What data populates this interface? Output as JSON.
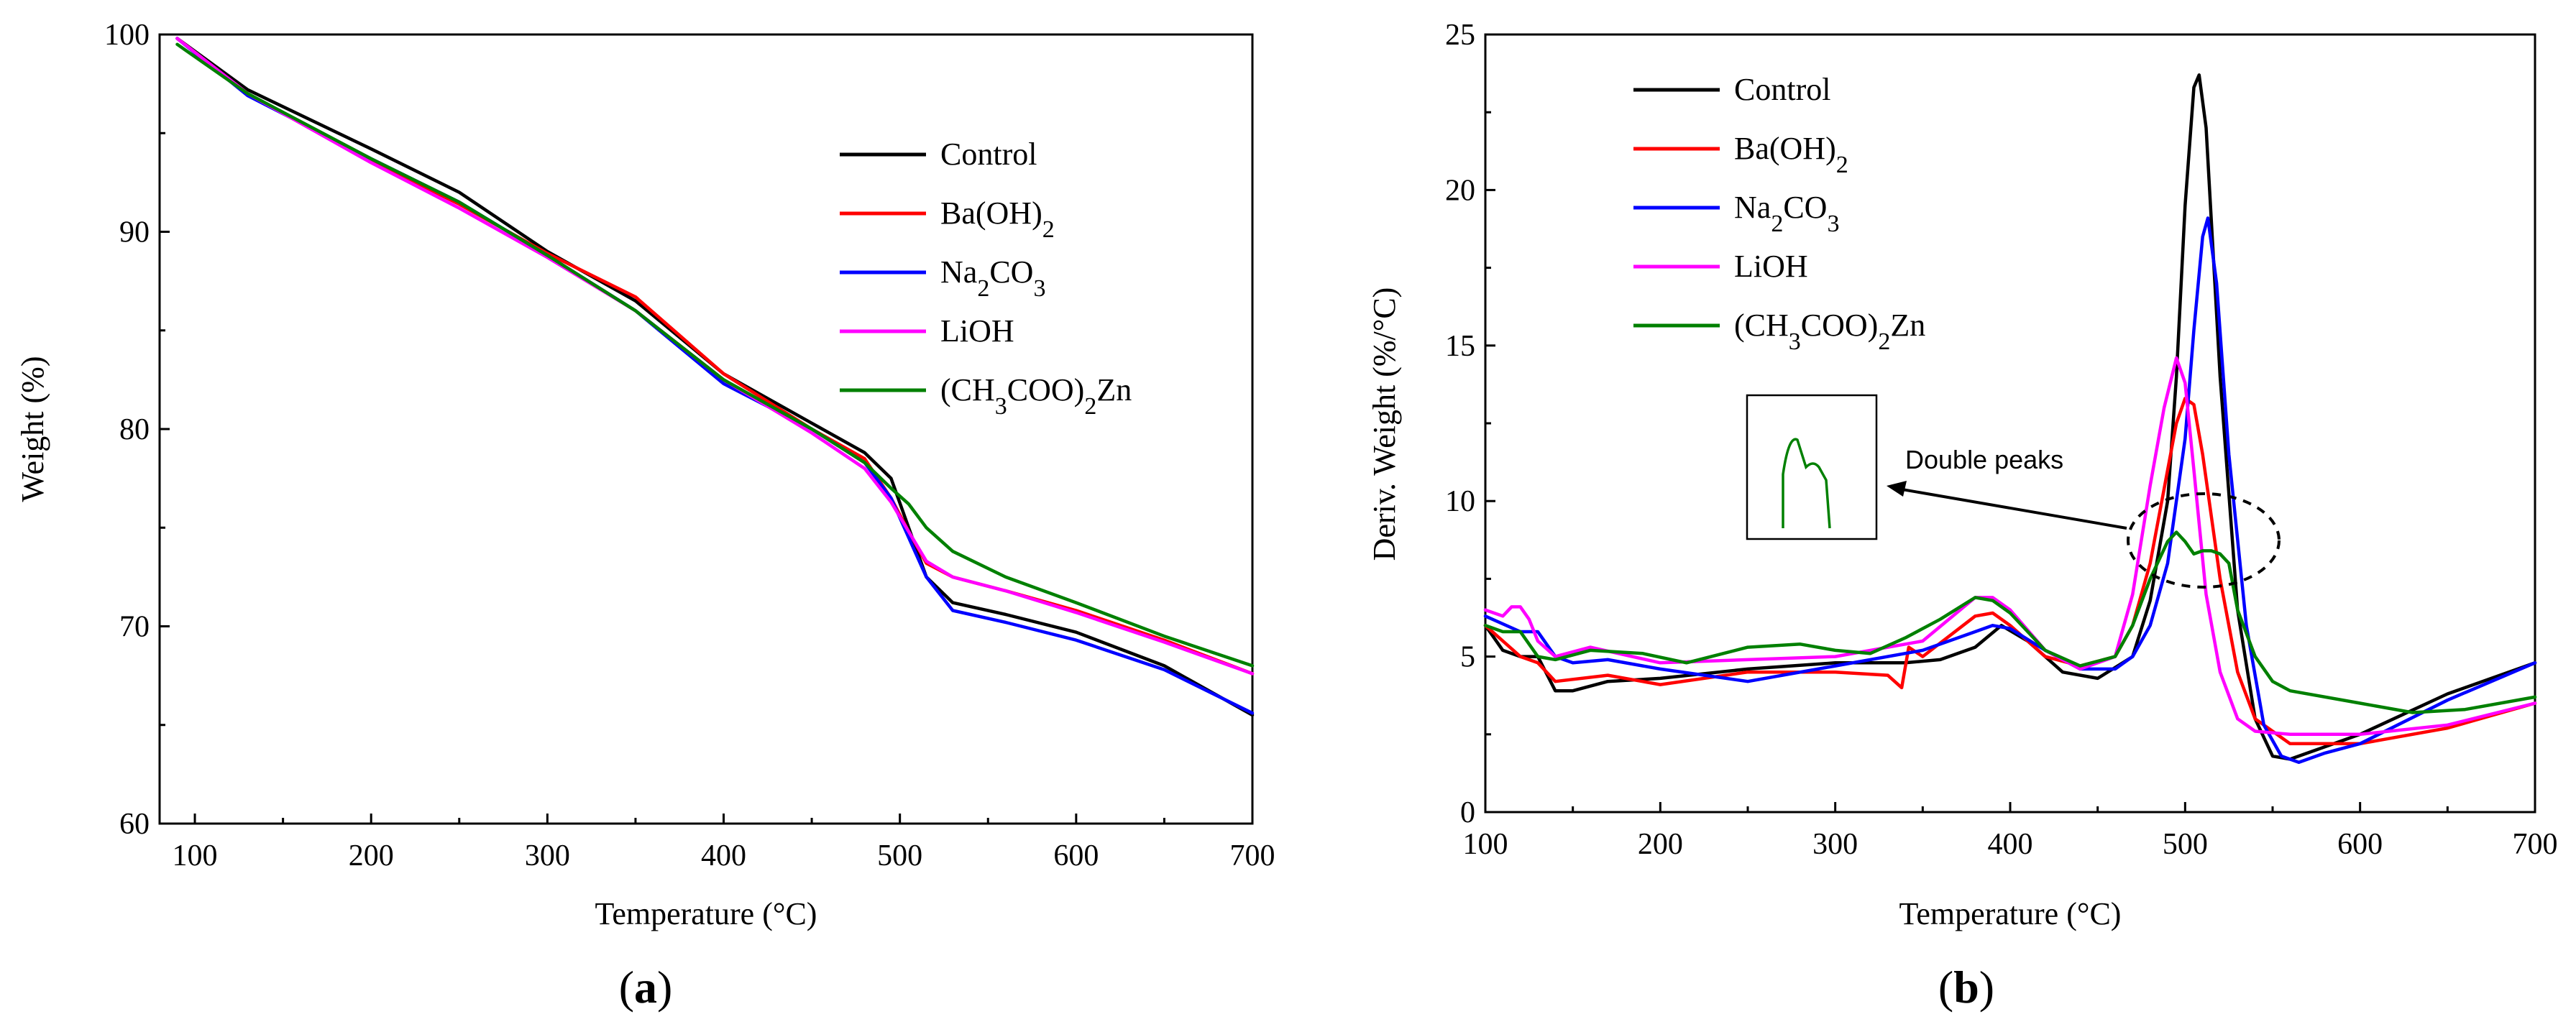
{
  "chart_data": [
    {
      "type": "line",
      "panel_label": "a",
      "xlabel": "Temperature (°C)",
      "ylabel": "Weight (%)",
      "xlim": [
        80,
        700
      ],
      "ylim": [
        60,
        100
      ],
      "xticks": [
        100,
        200,
        300,
        400,
        500,
        600,
        700
      ],
      "yticks": [
        60,
        70,
        80,
        90,
        100
      ],
      "legend_position": "top-right",
      "series": [
        {
          "name": "Control",
          "color": "#000000",
          "x": [
            90,
            130,
            200,
            250,
            300,
            350,
            400,
            450,
            480,
            495,
            505,
            515,
            530,
            560,
            600,
            650,
            700
          ],
          "y": [
            99.8,
            97.2,
            94.2,
            92.0,
            89.0,
            86.5,
            82.8,
            80.3,
            78.8,
            77.5,
            75.0,
            72.5,
            71.2,
            70.6,
            69.7,
            68.0,
            65.5
          ]
        },
        {
          "name": "Ba(OH)2",
          "color": "#ff0000",
          "x": [
            90,
            130,
            200,
            250,
            300,
            350,
            400,
            450,
            480,
            495,
            505,
            515,
            530,
            560,
            600,
            650,
            700
          ],
          "y": [
            99.8,
            97.0,
            93.6,
            91.4,
            88.9,
            86.7,
            82.8,
            80.0,
            78.5,
            76.5,
            74.8,
            73.2,
            72.5,
            71.8,
            70.8,
            69.3,
            67.6
          ]
        },
        {
          "name": "Na2CO3",
          "color": "#0000ff",
          "x": [
            90,
            130,
            200,
            250,
            300,
            350,
            400,
            450,
            480,
            495,
            505,
            515,
            530,
            560,
            600,
            650,
            700
          ],
          "y": [
            99.8,
            96.9,
            93.7,
            91.5,
            88.8,
            86.0,
            82.3,
            80.0,
            78.3,
            76.5,
            74.5,
            72.5,
            70.8,
            70.2,
            69.3,
            67.8,
            65.6
          ]
        },
        {
          "name": "LiOH",
          "color": "#ff00ff",
          "x": [
            90,
            130,
            200,
            250,
            300,
            350,
            400,
            450,
            480,
            495,
            505,
            515,
            530,
            560,
            600,
            650,
            700
          ],
          "y": [
            99.8,
            97.0,
            93.5,
            91.2,
            88.7,
            86.0,
            82.5,
            79.8,
            78.0,
            76.3,
            74.8,
            73.3,
            72.5,
            71.8,
            70.7,
            69.2,
            67.6
          ]
        },
        {
          "name": "(CH3COO)2Zn",
          "color": "#008000",
          "x": [
            90,
            130,
            200,
            250,
            300,
            350,
            400,
            450,
            480,
            495,
            505,
            515,
            530,
            560,
            600,
            650,
            700
          ],
          "y": [
            99.5,
            97.0,
            93.7,
            91.5,
            88.8,
            86.0,
            82.5,
            80.0,
            78.3,
            77.0,
            76.2,
            75.0,
            73.8,
            72.5,
            71.2,
            69.5,
            68.0
          ]
        }
      ]
    },
    {
      "type": "line",
      "panel_label": "b",
      "xlabel": "Temperature (°C)",
      "ylabel": "Deriv. Weight (%/°C)",
      "xlim": [
        100,
        700
      ],
      "ylim": [
        0,
        25
      ],
      "xticks": [
        100,
        200,
        300,
        400,
        500,
        600,
        700
      ],
      "yticks": [
        0,
        5,
        10,
        15,
        20,
        25
      ],
      "legend_position": "top-left",
      "annotation": "Double peaks",
      "series": [
        {
          "name": "Control",
          "color": "#000000",
          "x": [
            100,
            110,
            120,
            130,
            140,
            150,
            170,
            200,
            250,
            300,
            340,
            360,
            380,
            395,
            410,
            430,
            450,
            470,
            480,
            490,
            495,
            500,
            505,
            508,
            512,
            520,
            530,
            540,
            550,
            560,
            600,
            650,
            700
          ],
          "y": [
            6.0,
            5.2,
            5.0,
            5.0,
            3.9,
            3.9,
            4.2,
            4.3,
            4.6,
            4.8,
            4.8,
            4.9,
            5.3,
            6.0,
            5.5,
            4.5,
            4.3,
            5.0,
            6.8,
            10.0,
            14.0,
            19.5,
            23.3,
            23.7,
            22.0,
            14.0,
            6.5,
            3.0,
            1.8,
            1.7,
            2.5,
            3.8,
            4.8
          ]
        },
        {
          "name": "Ba(OH)2",
          "color": "#ff0000",
          "x": [
            100,
            120,
            130,
            140,
            170,
            200,
            250,
            300,
            330,
            338,
            342,
            350,
            380,
            390,
            400,
            420,
            440,
            460,
            470,
            480,
            490,
            495,
            500,
            505,
            510,
            520,
            530,
            540,
            560,
            600,
            650,
            700
          ],
          "y": [
            6.0,
            5.0,
            4.8,
            4.2,
            4.4,
            4.1,
            4.5,
            4.5,
            4.4,
            4.0,
            5.3,
            5.0,
            6.3,
            6.4,
            6.0,
            5.0,
            4.7,
            5.0,
            6.0,
            8.0,
            11.0,
            12.5,
            13.3,
            13.1,
            11.5,
            7.5,
            4.5,
            3.0,
            2.2,
            2.2,
            2.7,
            3.5
          ]
        },
        {
          "name": "Na2CO3",
          "color": "#0000ff",
          "x": [
            100,
            120,
            130,
            140,
            150,
            170,
            200,
            250,
            300,
            350,
            380,
            390,
            400,
            420,
            440,
            460,
            470,
            480,
            490,
            500,
            505,
            510,
            513,
            518,
            525,
            535,
            545,
            555,
            565,
            580,
            600,
            650,
            700
          ],
          "y": [
            6.3,
            5.8,
            5.8,
            5.0,
            4.8,
            4.9,
            4.6,
            4.2,
            4.7,
            5.2,
            5.8,
            6.0,
            5.9,
            5.2,
            4.6,
            4.6,
            5.0,
            6.0,
            8.0,
            12.0,
            15.5,
            18.5,
            19.1,
            17.0,
            11.5,
            6.0,
            2.8,
            1.8,
            1.6,
            1.9,
            2.2,
            3.6,
            4.8
          ]
        },
        {
          "name": "LiOH",
          "color": "#ff00ff",
          "x": [
            100,
            110,
            115,
            120,
            125,
            130,
            140,
            160,
            200,
            250,
            300,
            350,
            380,
            390,
            400,
            420,
            440,
            460,
            470,
            480,
            488,
            495,
            500,
            505,
            512,
            520,
            530,
            540,
            560,
            600,
            650,
            700
          ],
          "y": [
            6.5,
            6.3,
            6.6,
            6.6,
            6.2,
            5.5,
            5.0,
            5.3,
            4.8,
            4.9,
            5.0,
            5.5,
            6.9,
            6.9,
            6.5,
            5.2,
            4.6,
            5.0,
            7.0,
            10.5,
            13.0,
            14.6,
            13.8,
            11.0,
            7.0,
            4.5,
            3.0,
            2.6,
            2.5,
            2.5,
            2.8,
            3.5
          ]
        },
        {
          "name": "(CH3COO)2Zn",
          "color": "#008000",
          "x": [
            100,
            110,
            120,
            130,
            140,
            160,
            190,
            215,
            250,
            280,
            300,
            320,
            340,
            360,
            380,
            390,
            400,
            420,
            440,
            460,
            470,
            480,
            490,
            495,
            500,
            505,
            510,
            515,
            520,
            525,
            530,
            540,
            550,
            560,
            600,
            630,
            660,
            700
          ],
          "y": [
            6.0,
            5.8,
            5.8,
            5.0,
            4.9,
            5.2,
            5.1,
            4.8,
            5.3,
            5.4,
            5.2,
            5.1,
            5.6,
            6.2,
            6.9,
            6.8,
            6.4,
            5.2,
            4.7,
            5.0,
            6.0,
            7.5,
            8.7,
            9.0,
            8.7,
            8.3,
            8.4,
            8.4,
            8.3,
            8.0,
            6.5,
            5.0,
            4.2,
            3.9,
            3.5,
            3.2,
            3.3,
            3.7
          ]
        }
      ]
    }
  ]
}
